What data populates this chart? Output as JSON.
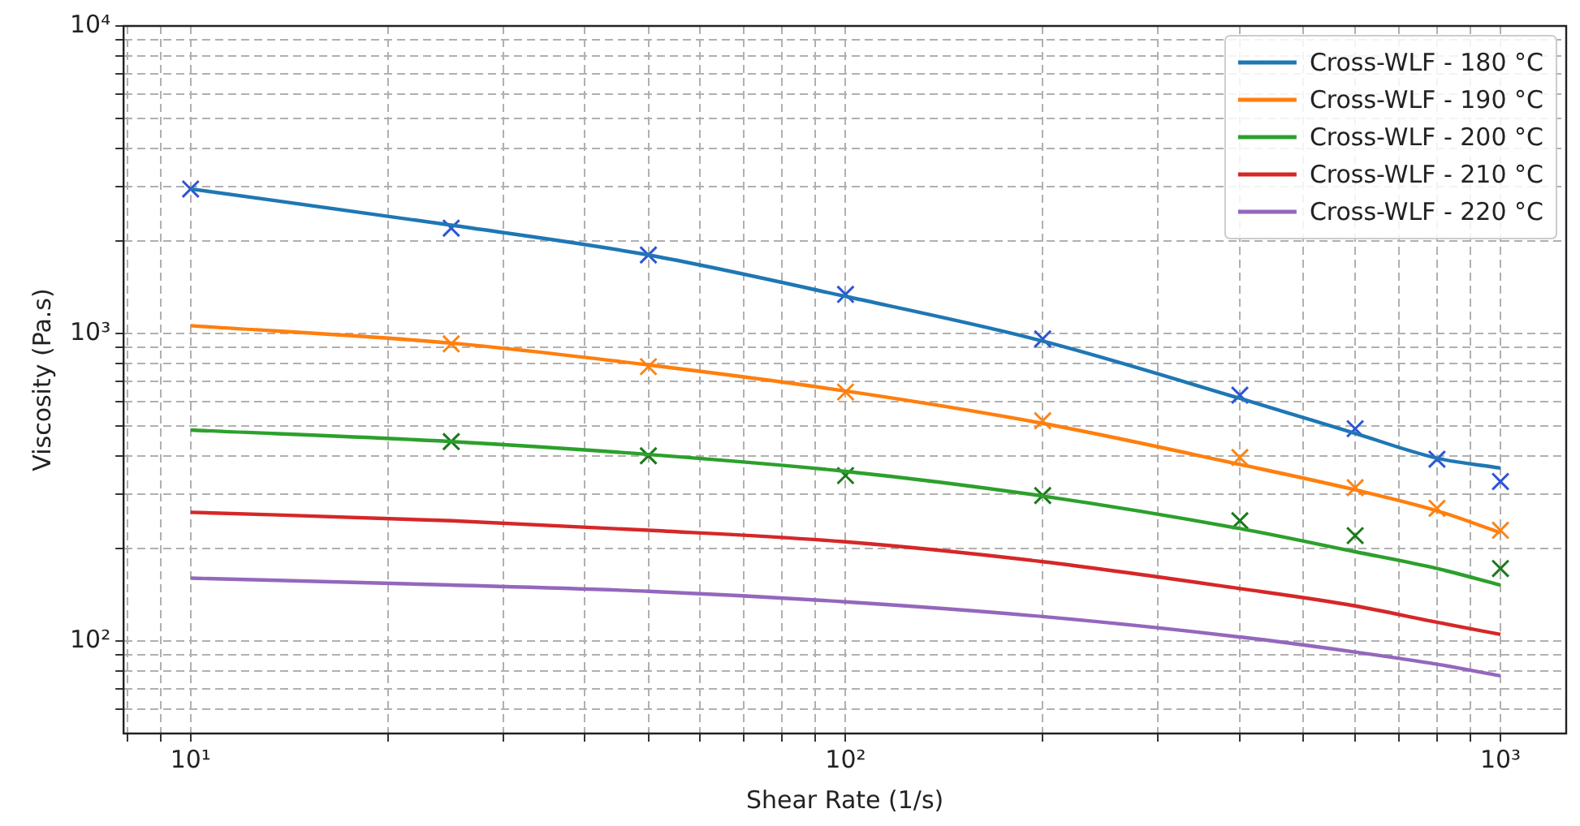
{
  "chart_data": {
    "type": "line",
    "xlabel": "Shear Rate (1/s)",
    "ylabel": "Viscosity (Pa.s)",
    "log": "xy",
    "grid": true,
    "legend": "top right",
    "line_style": "solid",
    "xlim": [
      7.9,
      1260
    ],
    "ylim": [
      50,
      10000
    ],
    "xticks": [
      {
        "value": 8,
        "label": null
      },
      {
        "value": 9,
        "label": null
      },
      {
        "value": 10,
        "label": "10¹"
      },
      {
        "value": 20,
        "label": null
      },
      {
        "value": 30,
        "label": null
      },
      {
        "value": 40,
        "label": null
      },
      {
        "value": 50,
        "label": null
      },
      {
        "value": 60,
        "label": null
      },
      {
        "value": 70,
        "label": null
      },
      {
        "value": 80,
        "label": null
      },
      {
        "value": 90,
        "label": null
      },
      {
        "value": 100,
        "label": "10²"
      },
      {
        "value": 200,
        "label": null
      },
      {
        "value": 300,
        "label": null
      },
      {
        "value": 400,
        "label": null
      },
      {
        "value": 500,
        "label": null
      },
      {
        "value": 600,
        "label": null
      },
      {
        "value": 700,
        "label": null
      },
      {
        "value": 800,
        "label": null
      },
      {
        "value": 900,
        "label": null
      },
      {
        "value": 1000,
        "label": "10³"
      }
    ],
    "yticks": [
      {
        "value": 60,
        "label": null
      },
      {
        "value": 70,
        "label": null
      },
      {
        "value": 80,
        "label": null
      },
      {
        "value": 90,
        "label": null
      },
      {
        "value": 100,
        "label": "10²"
      },
      {
        "value": 200,
        "label": null
      },
      {
        "value": 300,
        "label": null
      },
      {
        "value": 400,
        "label": null
      },
      {
        "value": 500,
        "label": null
      },
      {
        "value": 600,
        "label": null
      },
      {
        "value": 700,
        "label": null
      },
      {
        "value": 800,
        "label": null
      },
      {
        "value": 900,
        "label": null
      },
      {
        "value": 1000,
        "label": "10³"
      },
      {
        "value": 2000,
        "label": null
      },
      {
        "value": 3000,
        "label": null
      },
      {
        "value": 4000,
        "label": null
      },
      {
        "value": 5000,
        "label": null
      },
      {
        "value": 6000,
        "label": null
      },
      {
        "value": 7000,
        "label": null
      },
      {
        "value": 8000,
        "label": null
      },
      {
        "value": 9000,
        "label": null
      },
      {
        "value": 10000,
        "label": "10⁴"
      }
    ],
    "x": [
      10,
      25,
      50,
      100,
      200,
      400,
      600,
      800,
      1000
    ],
    "series": [
      {
        "name": "Cross-WLF - 180 °C",
        "type": "line",
        "marker": "none",
        "color": "#1f77b4",
        "values": [
          2950,
          2250,
          1800,
          1320,
          945,
          615,
          473,
          393,
          365
        ]
      },
      {
        "name": "Cross-WLF - 190 °C",
        "type": "line",
        "marker": "none",
        "color": "#ff7f0e",
        "values": [
          1060,
          930,
          790,
          650,
          510,
          375,
          310,
          265,
          225
        ]
      },
      {
        "name": "Cross-WLF - 200 °C",
        "type": "line",
        "marker": "none",
        "color": "#2ca02c",
        "values": [
          485,
          445,
          404,
          356,
          296,
          232,
          195,
          172,
          152
        ]
      },
      {
        "name": "Cross-WLF - 210 °C",
        "type": "line",
        "marker": "none",
        "color": "#d62728",
        "values": [
          262,
          246,
          229,
          210,
          181,
          148,
          130,
          115,
          105
        ]
      },
      {
        "name": "Cross-WLF - 220 °C",
        "type": "line",
        "marker": "none",
        "color": "#9467bd",
        "values": [
          160,
          152,
          145,
          134,
          120,
          103,
          92,
          84,
          77
        ]
      },
      {
        "type": "scatter",
        "marker": "cross",
        "color": "#2f54d6",
        "x": [
          10,
          25,
          50,
          100,
          200,
          400,
          600,
          800,
          1000
        ],
        "values": [
          2950,
          2200,
          1800,
          1340,
          960,
          630,
          490,
          390,
          330
        ]
      },
      {
        "type": "scatter",
        "marker": "cross",
        "color": "#ff8412",
        "x": [
          25,
          50,
          100,
          200,
          400,
          600,
          800,
          1000
        ],
        "values": [
          925,
          780,
          645,
          520,
          395,
          315,
          270,
          229
        ]
      },
      {
        "type": "scatter",
        "marker": "cross",
        "color": "#1a7a1a",
        "x": [
          25,
          50,
          100,
          200,
          400,
          600,
          1000
        ],
        "values": [
          445,
          400,
          345,
          297,
          246,
          220,
          172
        ]
      }
    ]
  }
}
